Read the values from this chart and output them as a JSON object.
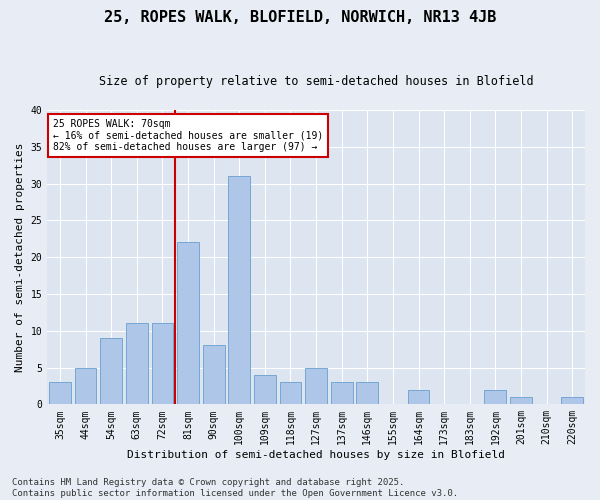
{
  "title": "25, ROPES WALK, BLOFIELD, NORWICH, NR13 4JB",
  "subtitle": "Size of property relative to semi-detached houses in Blofield",
  "xlabel": "Distribution of semi-detached houses by size in Blofield",
  "ylabel": "Number of semi-detached properties",
  "categories": [
    "35sqm",
    "44sqm",
    "54sqm",
    "63sqm",
    "72sqm",
    "81sqm",
    "90sqm",
    "100sqm",
    "109sqm",
    "118sqm",
    "127sqm",
    "137sqm",
    "146sqm",
    "155sqm",
    "164sqm",
    "173sqm",
    "183sqm",
    "192sqm",
    "201sqm",
    "210sqm",
    "220sqm"
  ],
  "values": [
    3,
    5,
    9,
    11,
    11,
    22,
    8,
    31,
    4,
    3,
    5,
    3,
    3,
    0,
    2,
    0,
    0,
    2,
    1,
    0,
    1
  ],
  "bar_color": "#aec6e8",
  "bar_edge_color": "#6a9fd0",
  "vline_x_index": 4,
  "vline_color": "#cc0000",
  "annotation_text": "25 ROPES WALK: 70sqm\n← 16% of semi-detached houses are smaller (19)\n82% of semi-detached houses are larger (97) →",
  "annotation_box_facecolor": "#ffffff",
  "annotation_box_edgecolor": "#cc0000",
  "ylim": [
    0,
    40
  ],
  "yticks": [
    0,
    5,
    10,
    15,
    20,
    25,
    30,
    35,
    40
  ],
  "footnote": "Contains HM Land Registry data © Crown copyright and database right 2025.\nContains public sector information licensed under the Open Government Licence v3.0.",
  "bg_color": "#e8edf5",
  "plot_bg_color": "#dce5f0",
  "grid_color": "#ffffff",
  "title_fontsize": 11,
  "subtitle_fontsize": 8.5,
  "tick_fontsize": 7,
  "ylabel_fontsize": 8,
  "xlabel_fontsize": 8,
  "annotation_fontsize": 7,
  "footnote_fontsize": 6.5
}
